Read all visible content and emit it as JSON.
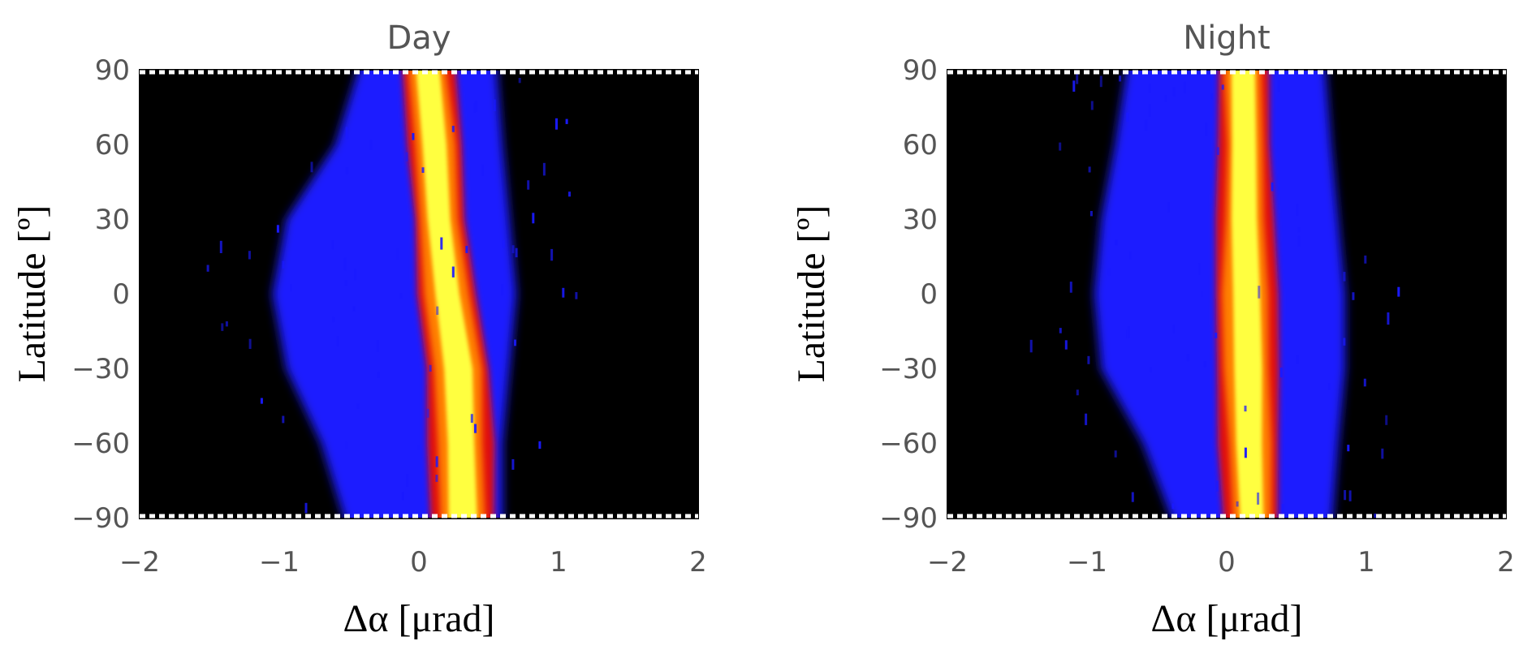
{
  "chart_data": [
    {
      "type": "heatmap",
      "title": "Day",
      "xlabel": "Δα [μrad]",
      "ylabel": "Latitude [º]",
      "xlim": [
        -2,
        2
      ],
      "ylim": [
        -90,
        90
      ],
      "x_ticks": [
        "−2",
        "−1",
        "0",
        "1",
        "2"
      ],
      "y_ticks": [
        "90",
        "60",
        "30",
        "0",
        "−30",
        "−60",
        "−90"
      ],
      "grid": false,
      "colormap": [
        "#000000",
        "#1a1aff",
        "#e01010",
        "#ff8000",
        "#ffff40"
      ],
      "ridge": {
        "latitude": [
          90,
          60,
          30,
          0,
          -30,
          -60,
          -90
        ],
        "center": [
          0.05,
          0.12,
          0.15,
          0.2,
          0.28,
          0.3,
          0.32
        ],
        "core_halfwidth": [
          0.1,
          0.1,
          0.1,
          0.11,
          0.12,
          0.12,
          0.12
        ],
        "envelope_left": [
          -0.4,
          -0.6,
          -0.95,
          -1.05,
          -0.95,
          -0.7,
          -0.5
        ],
        "envelope_right": [
          0.55,
          0.6,
          0.65,
          0.7,
          0.65,
          0.6,
          0.6
        ]
      }
    },
    {
      "type": "heatmap",
      "title": "Night",
      "xlabel": "Δα [μrad]",
      "ylabel": "Latitude [º]",
      "xlim": [
        -2,
        2
      ],
      "ylim": [
        -90,
        90
      ],
      "x_ticks": [
        "−2",
        "−1",
        "0",
        "1",
        "2"
      ],
      "y_ticks": [
        "90",
        "60",
        "30",
        "0",
        "−30",
        "−60",
        "−90"
      ],
      "grid": false,
      "colormap": [
        "#000000",
        "#1a1aff",
        "#e01010",
        "#ff8000",
        "#ffff40"
      ],
      "ridge": {
        "latitude": [
          90,
          60,
          30,
          0,
          -30,
          -60,
          -90
        ],
        "center": [
          0.12,
          0.13,
          0.13,
          0.14,
          0.15,
          0.16,
          0.18
        ],
        "core_halfwidth": [
          0.1,
          0.1,
          0.11,
          0.12,
          0.12,
          0.11,
          0.1
        ],
        "envelope_left": [
          -0.7,
          -0.8,
          -0.9,
          -0.95,
          -0.9,
          -0.6,
          -0.35
        ],
        "envelope_right": [
          0.7,
          0.75,
          0.8,
          0.85,
          0.85,
          0.8,
          0.75
        ]
      }
    }
  ]
}
